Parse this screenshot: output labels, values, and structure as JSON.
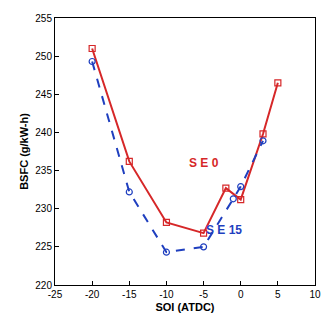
{
  "chart_data": {
    "type": "line",
    "x_label": "SOI (ATDC)",
    "y_label": "BSFC (g/kW-h)",
    "xlim": [
      -25,
      10
    ],
    "xticks": [
      -25,
      -20,
      -15,
      -10,
      -5,
      0,
      5,
      10
    ],
    "ylim": [
      220,
      255
    ],
    "yticks": [
      220,
      225,
      230,
      235,
      240,
      245,
      250,
      255
    ],
    "grid": false,
    "series": [
      {
        "name": "S E 0",
        "color": "#d62728",
        "marker": "square-open",
        "line_style": "solid",
        "x": [
          -20,
          -15,
          -10,
          -5,
          -2,
          0,
          3,
          5
        ],
        "values": [
          251,
          236.2,
          228.2,
          226.8,
          232.7,
          231.2,
          239.8,
          246.5
        ]
      },
      {
        "name": "S E 15",
        "color": "#1f3fbf",
        "marker": "circle-open",
        "line_style": "dash",
        "x": [
          -20,
          -15,
          -10,
          -5,
          -1,
          0,
          3
        ],
        "values": [
          249.3,
          232.2,
          224.3,
          225,
          231.3,
          232.9,
          238.9
        ]
      }
    ],
    "annotations": [
      {
        "text": "S E 0",
        "x": -5,
        "y": 236,
        "color": "#d62728"
      },
      {
        "text": "S E 15",
        "x": -2.3,
        "y": 227.2,
        "color": "#1f3fbf"
      }
    ]
  }
}
